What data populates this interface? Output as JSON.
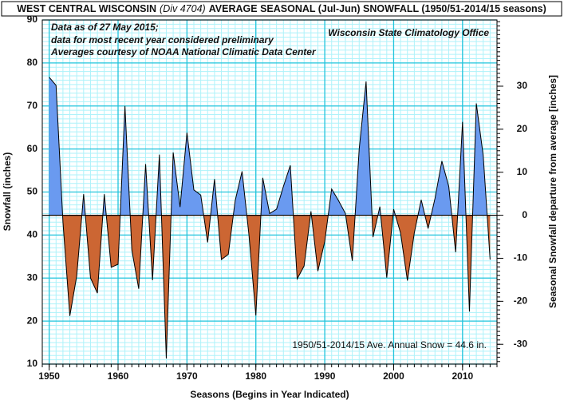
{
  "chart_data": {
    "type": "area",
    "title": [
      "WEST CENTRAL WISCONSIN",
      "(Div 4704)",
      "AVERAGE SEASONAL (Jul-Jun) SNOWFALL (1950/51-2014/15 seasons)"
    ],
    "notes": [
      "Data as of 27  May 2015;",
      "data for most recent year considered preliminary",
      "Averages courtesy of NOAA National Climatic Data Center"
    ],
    "source": "Wisconsin State Climatology Office",
    "annotation": "1950/51-2014/15 Ave. Annual Snow = 44.6 in.",
    "xlabel": "Seasons (Begins in Year Indicated)",
    "ylabel": "Snowfall  (inches)",
    "y2label": "Seasonal Snowfall departure from average [inches]",
    "average": 44.6,
    "above_color": "#6a9af0",
    "below_color": "#cc6633",
    "grid": true,
    "minor_grid_divisions": 10,
    "x": [
      1950,
      1951,
      1952,
      1953,
      1954,
      1955,
      1956,
      1957,
      1958,
      1959,
      1960,
      1961,
      1962,
      1963,
      1964,
      1965,
      1966,
      1967,
      1968,
      1969,
      1970,
      1971,
      1972,
      1973,
      1974,
      1975,
      1976,
      1977,
      1978,
      1979,
      1980,
      1981,
      1982,
      1983,
      1984,
      1985,
      1986,
      1987,
      1988,
      1989,
      1990,
      1991,
      1992,
      1993,
      1994,
      1995,
      1996,
      1997,
      1998,
      1999,
      2000,
      2001,
      2002,
      2003,
      2004,
      2005,
      2006,
      2007,
      2008,
      2009,
      2010,
      2011,
      2012,
      2013,
      2014
    ],
    "values": [
      76.7,
      74.8,
      43,
      21.2,
      30.5,
      49.5,
      30,
      26.5,
      49.5,
      32.5,
      33.2,
      70,
      36.5,
      27.5,
      56.5,
      29.5,
      58.7,
      11.3,
      59.2,
      46.5,
      63.8,
      50.5,
      49.3,
      38.3,
      53,
      34.3,
      35.5,
      48,
      54.8,
      40,
      21.3,
      53.3,
      45,
      46,
      51.3,
      56.2,
      29.8,
      32.8,
      45.5,
      31.6,
      38.5,
      50.7,
      48,
      45,
      34,
      60,
      75.7,
      39.5,
      46.6,
      30.1,
      46,
      40.5,
      29.4,
      40.5,
      48.2,
      41.5,
      48.5,
      57.2,
      51.3,
      36,
      66.3,
      22.2,
      70.6,
      58.5,
      34.3
    ],
    "xlim": [
      1949,
      2015
    ],
    "xticks": [
      1950,
      1960,
      1970,
      1980,
      1990,
      2000,
      2010
    ],
    "ylim": [
      10,
      90
    ],
    "yticks": [
      10,
      20,
      30,
      40,
      50,
      60,
      70,
      80,
      90
    ],
    "y2lim": [
      -34.6,
      45.4
    ],
    "y2ticks": [
      -30,
      -20,
      -10,
      0,
      10,
      20,
      30
    ]
  }
}
